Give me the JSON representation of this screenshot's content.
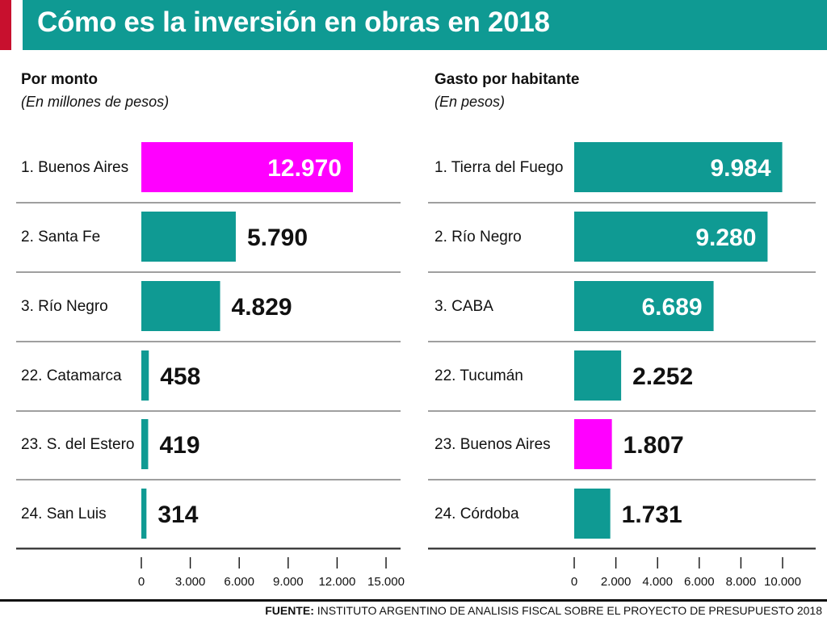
{
  "header": {
    "title": "Cómo es la inversión en obras en 2018",
    "accent_color": "#c8102e",
    "bar_color": "#0f9a93"
  },
  "colors": {
    "teal": "#0f9a93",
    "magenta": "#ff00ff"
  },
  "chart_data": [
    {
      "type": "bar",
      "orientation": "horizontal",
      "title": "Por monto",
      "subtitle": "(En millones de pesos)",
      "categories": [
        "1. Buenos Aires",
        "2. Santa Fe",
        "3. Río Negro",
        "22. Catamarca",
        "23. S. del Estero",
        "24. San Luis"
      ],
      "values": [
        12970,
        5790,
        4829,
        458,
        419,
        314
      ],
      "value_labels": [
        "12.970",
        "5.790",
        "4.829",
        "458",
        "419",
        "314"
      ],
      "highlight": [
        true,
        false,
        false,
        false,
        false,
        false
      ],
      "xlim": [
        0,
        15000
      ],
      "ticks": [
        0,
        3000,
        6000,
        9000,
        12000,
        15000
      ],
      "tick_labels": [
        "0",
        "3.000",
        "6.000",
        "9.000",
        "12.000",
        "15.000"
      ]
    },
    {
      "type": "bar",
      "orientation": "horizontal",
      "title": "Gasto por habitante",
      "subtitle": "(En pesos)",
      "categories": [
        "1. Tierra del Fuego",
        "2. Río Negro",
        "3. CABA",
        "22. Tucumán",
        "23. Buenos Aires",
        "24. Córdoba"
      ],
      "values": [
        9984,
        9280,
        6689,
        2252,
        1807,
        1731
      ],
      "value_labels": [
        "9.984",
        "9.280",
        "6.689",
        "2.252",
        "1.807",
        "1.731"
      ],
      "highlight": [
        false,
        false,
        false,
        false,
        true,
        false
      ],
      "xlim": [
        0,
        10000
      ],
      "ticks": [
        0,
        2000,
        4000,
        6000,
        8000,
        10000
      ],
      "tick_labels": [
        "0",
        "2.000",
        "4.000",
        "6.000",
        "8.000",
        "10.000"
      ]
    }
  ],
  "footer": {
    "source_label": "FUENTE:",
    "source_text": " INSTITUTO ARGENTINO DE ANALISIS FISCAL SOBRE EL PROYECTO DE PRESUPUESTO 2018"
  }
}
